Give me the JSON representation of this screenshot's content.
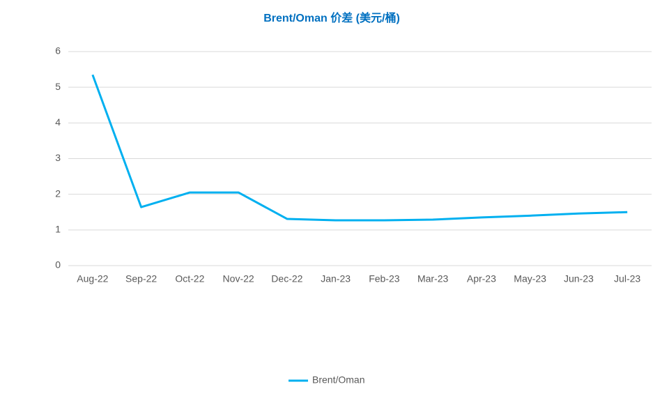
{
  "chart_data": {
    "type": "line",
    "title": "Brent/Oman 价差 (美元/桶)",
    "categories": [
      "Aug-22",
      "Sep-22",
      "Oct-22",
      "Nov-22",
      "Dec-22",
      "Jan-23",
      "Feb-23",
      "Mar-23",
      "Apr-23",
      "May-23",
      "Jun-23",
      "Jul-23"
    ],
    "series": [
      {
        "name": "Brent/Oman",
        "color": "#00b0f0",
        "values": [
          5.35,
          1.64,
          2.05,
          2.05,
          1.31,
          1.27,
          1.27,
          1.29,
          1.35,
          1.4,
          1.46,
          1.5
        ]
      }
    ],
    "ylim": [
      0,
      6
    ],
    "yticks": [
      0,
      1,
      2,
      3,
      4,
      5,
      6
    ],
    "grid": true,
    "legend": "bottom"
  }
}
